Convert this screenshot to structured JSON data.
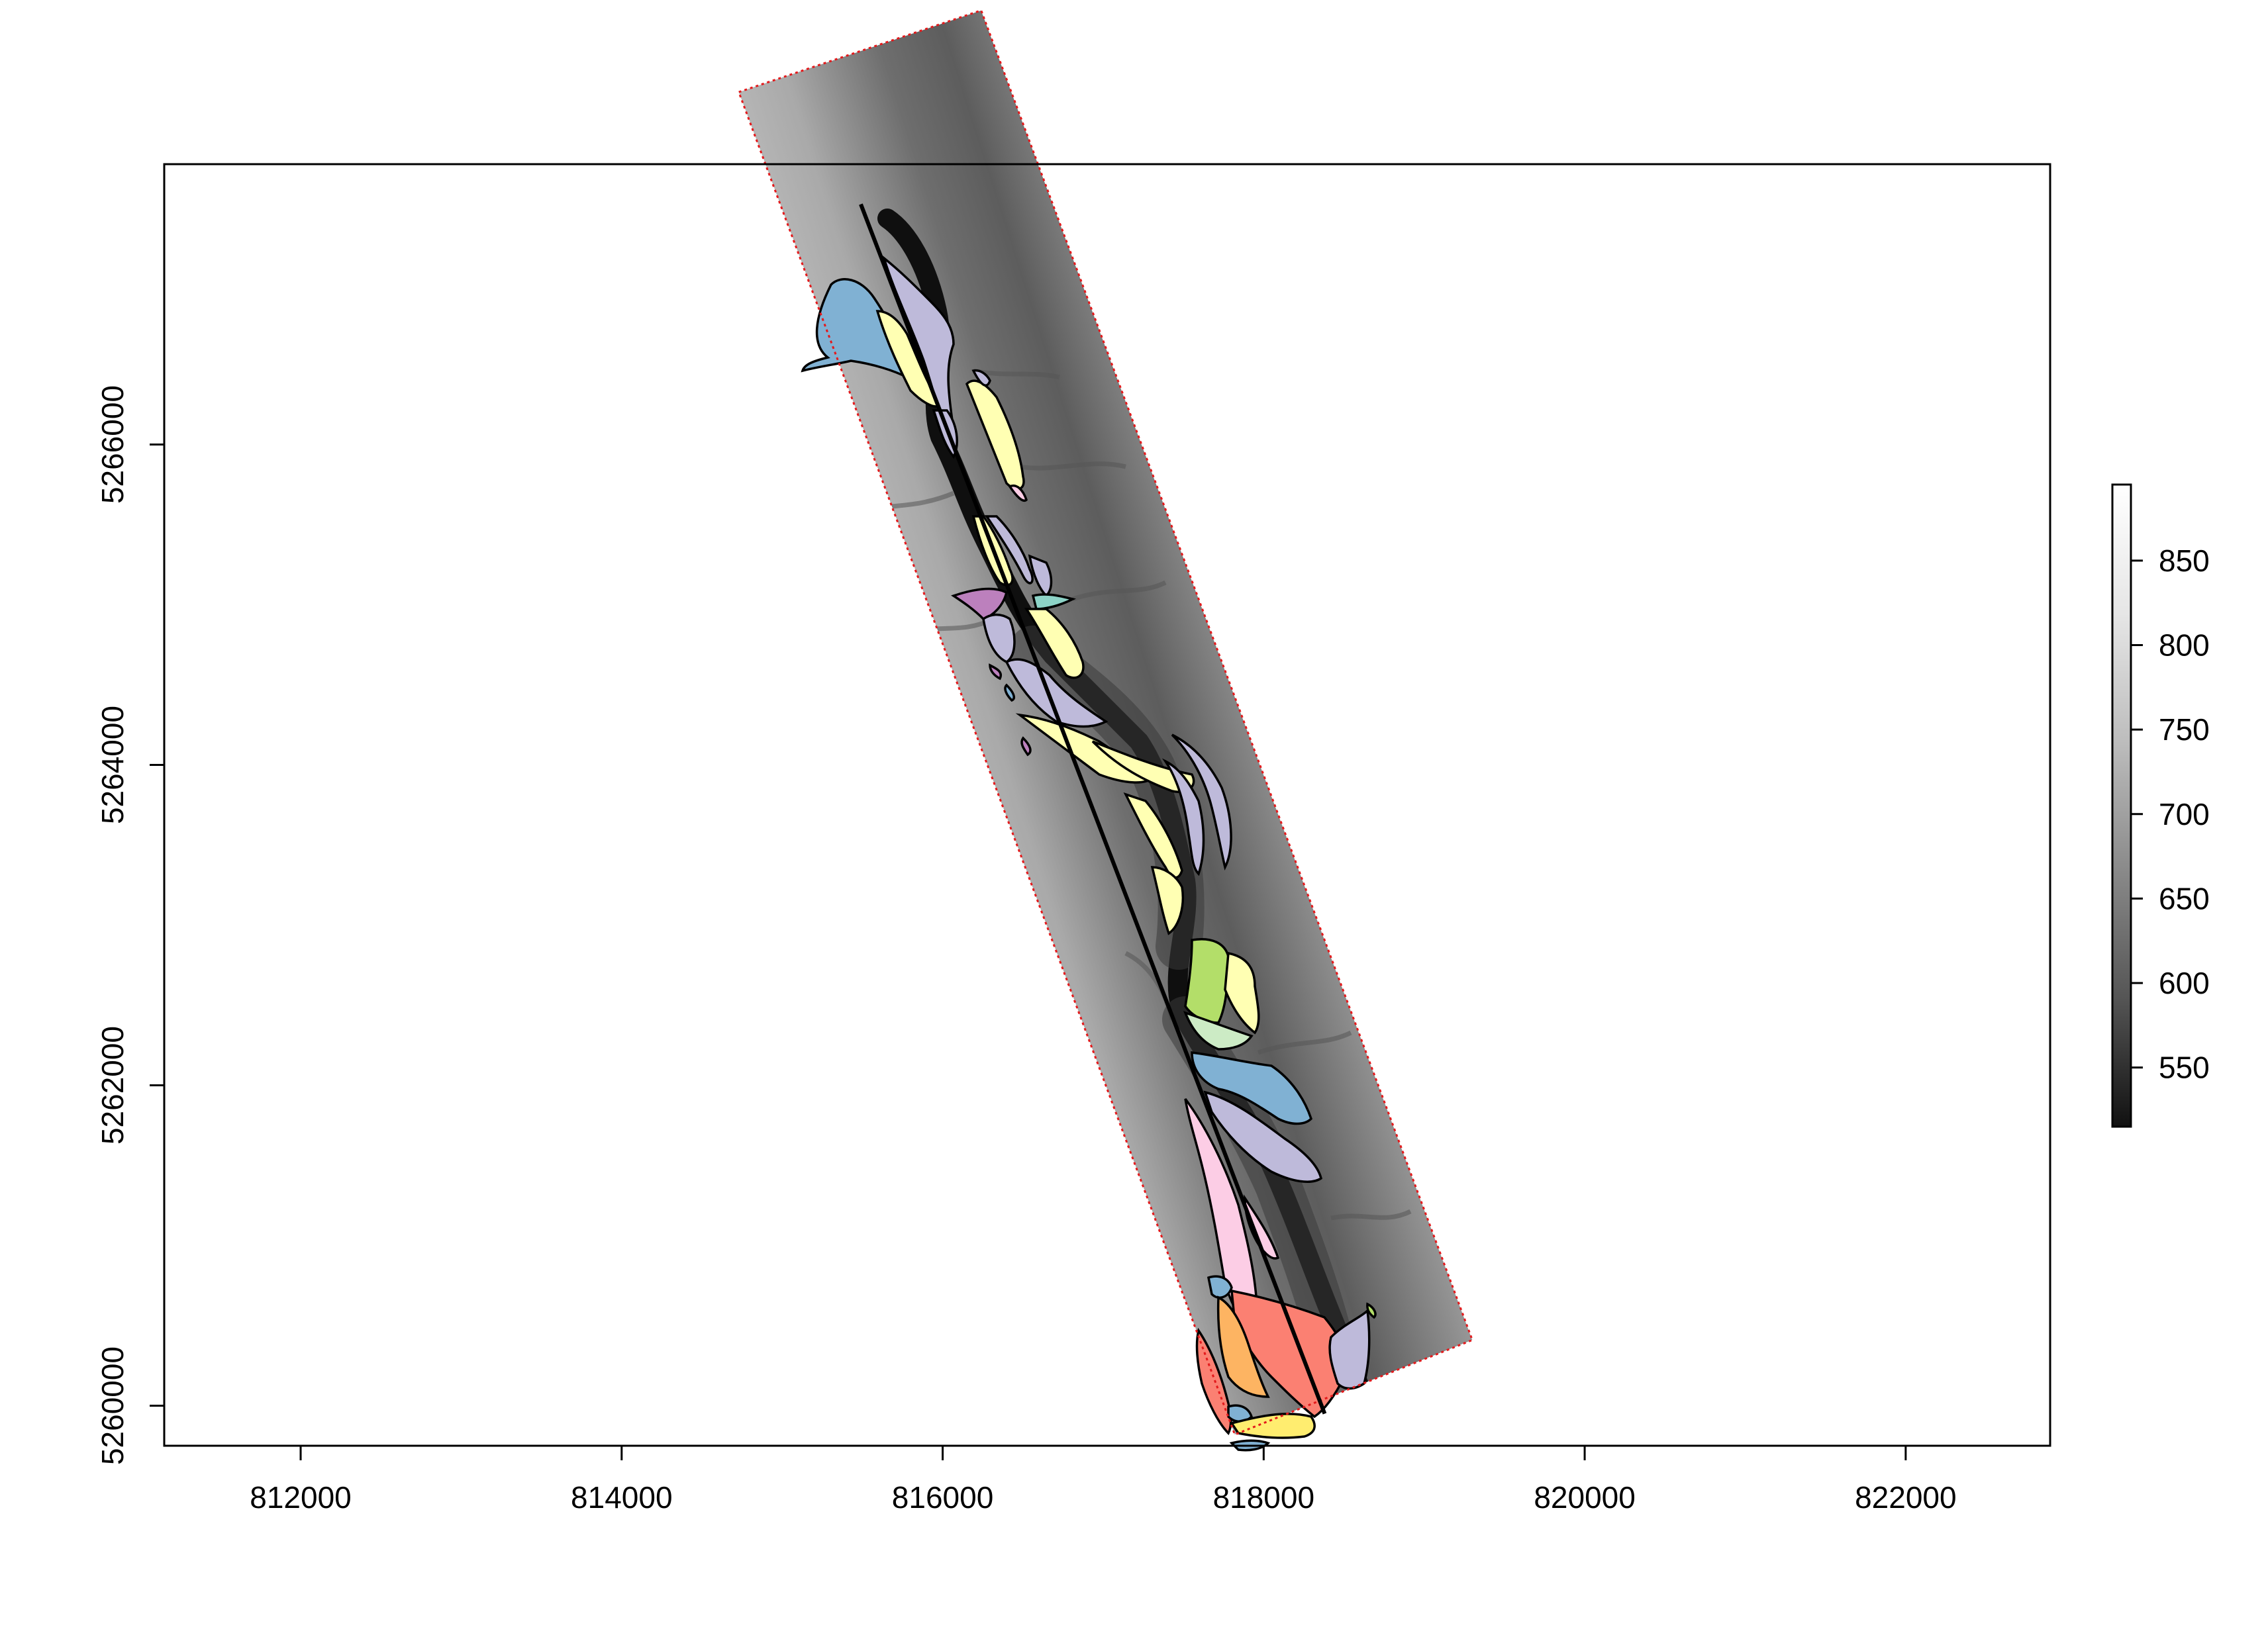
{
  "map": {
    "type": "raster-map",
    "x_axis": {
      "range": [
        811150,
        822900
      ],
      "ticks": [
        812000,
        814000,
        816000,
        818000,
        820000,
        822000
      ],
      "tick_labels": [
        "812000",
        "814000",
        "816000",
        "818000",
        "820000",
        "822000"
      ]
    },
    "y_axis": {
      "range": [
        5259750,
        5267750
      ],
      "ticks": [
        5260000,
        5262000,
        5264000,
        5266000
      ],
      "tick_labels": [
        "5260000",
        "5262000",
        "5264000",
        "5266000"
      ]
    },
    "legend": {
      "type": "color-bar",
      "placement": "right",
      "range": [
        515,
        895
      ],
      "ticks": [
        550,
        600,
        650,
        700,
        750,
        800,
        850
      ],
      "tick_labels": [
        "550",
        "600",
        "650",
        "700",
        "750",
        "800",
        "850"
      ],
      "gradient_colors": [
        "#111111",
        "#555555",
        "#8a8a8a",
        "#bdbdbd",
        "#e6e6e6",
        "#ffffff"
      ]
    },
    "study_corridor": {
      "outline_style": "dotted",
      "outline_color": "#e31a1c",
      "corners": [
        [
          814730,
          5268200
        ],
        [
          816240,
          5268710
        ],
        [
          819300,
          5260410
        ],
        [
          817820,
          5259820
        ]
      ]
    },
    "valley_profile_line": {
      "color": "#000000",
      "from": [
        815490,
        5267500
      ],
      "to": [
        818380,
        5259950
      ]
    },
    "polygon_palette": {
      "blue": "#80b1d3",
      "lavender": "#bebada",
      "yellow": "#ffffb3",
      "pink": "#fccde5",
      "magenta": "#bc80bd",
      "teal": "#8dd3c7",
      "green": "#b3de69",
      "mint": "#ccebc5",
      "salmon": "#fb8072",
      "orange": "#fdb462",
      "gold": "#ffed6f"
    }
  }
}
